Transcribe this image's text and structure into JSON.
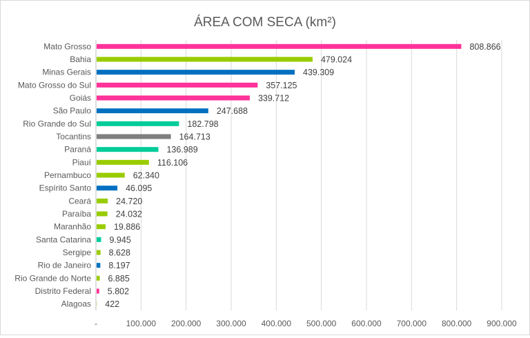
{
  "chart_data": {
    "type": "bar",
    "orientation": "horizontal",
    "title": "ÁREA COM SECA (km²)",
    "xlabel": "",
    "ylabel": "",
    "xlim": [
      0,
      900000
    ],
    "grid": true,
    "legend": "none",
    "x_tick_labels": [
      "-",
      "100.000",
      "200.000",
      "300.000",
      "400.000",
      "500.000",
      "600.000",
      "700.000",
      "800.000",
      "900.000"
    ],
    "x_ticks": [
      0,
      100000,
      200000,
      300000,
      400000,
      500000,
      600000,
      700000,
      800000,
      900000
    ],
    "categories": [
      "Mato Grosso",
      "Bahia",
      "Minas Gerais",
      "Mato Grosso do Sul",
      "Goiás",
      "São Paulo",
      "Rio Grande do Sul",
      "Tocantins",
      "Paraná",
      "Piauí",
      "Pernambuco",
      "Espírito Santo",
      "Ceará",
      "Paraíba",
      "Maranhão",
      "Santa Catarina",
      "Sergipe",
      "Rio de Janeiro",
      "Rio Grande do Norte",
      "Distrito Federal",
      "Alagoas"
    ],
    "values": [
      808866,
      479024,
      439309,
      357125,
      339712,
      247688,
      182798,
      164713,
      136989,
      116106,
      62340,
      46095,
      24720,
      24032,
      19886,
      9945,
      8628,
      8197,
      6885,
      5802,
      422
    ],
    "data_labels": [
      "808.866",
      "479.024",
      "439.309",
      "357.125",
      "339.712",
      "247.688",
      "182.798",
      "164.713",
      "136.989",
      "116.106",
      "62.340",
      "46.095",
      "24.720",
      "24.032",
      "19.886",
      "9.945",
      "8.628",
      "8.197",
      "6.885",
      "5.802",
      "422"
    ],
    "bar_colors": [
      "#FF3399",
      "#99CC00",
      "#0070C0",
      "#FF3399",
      "#FF3399",
      "#0070C0",
      "#00CC99",
      "#7F7F7F",
      "#00CC99",
      "#99CC00",
      "#99CC00",
      "#0070C0",
      "#99CC00",
      "#99CC00",
      "#99CC00",
      "#00CC99",
      "#99CC00",
      "#0070C0",
      "#99CC00",
      "#FF3399",
      "#99CC00"
    ]
  }
}
